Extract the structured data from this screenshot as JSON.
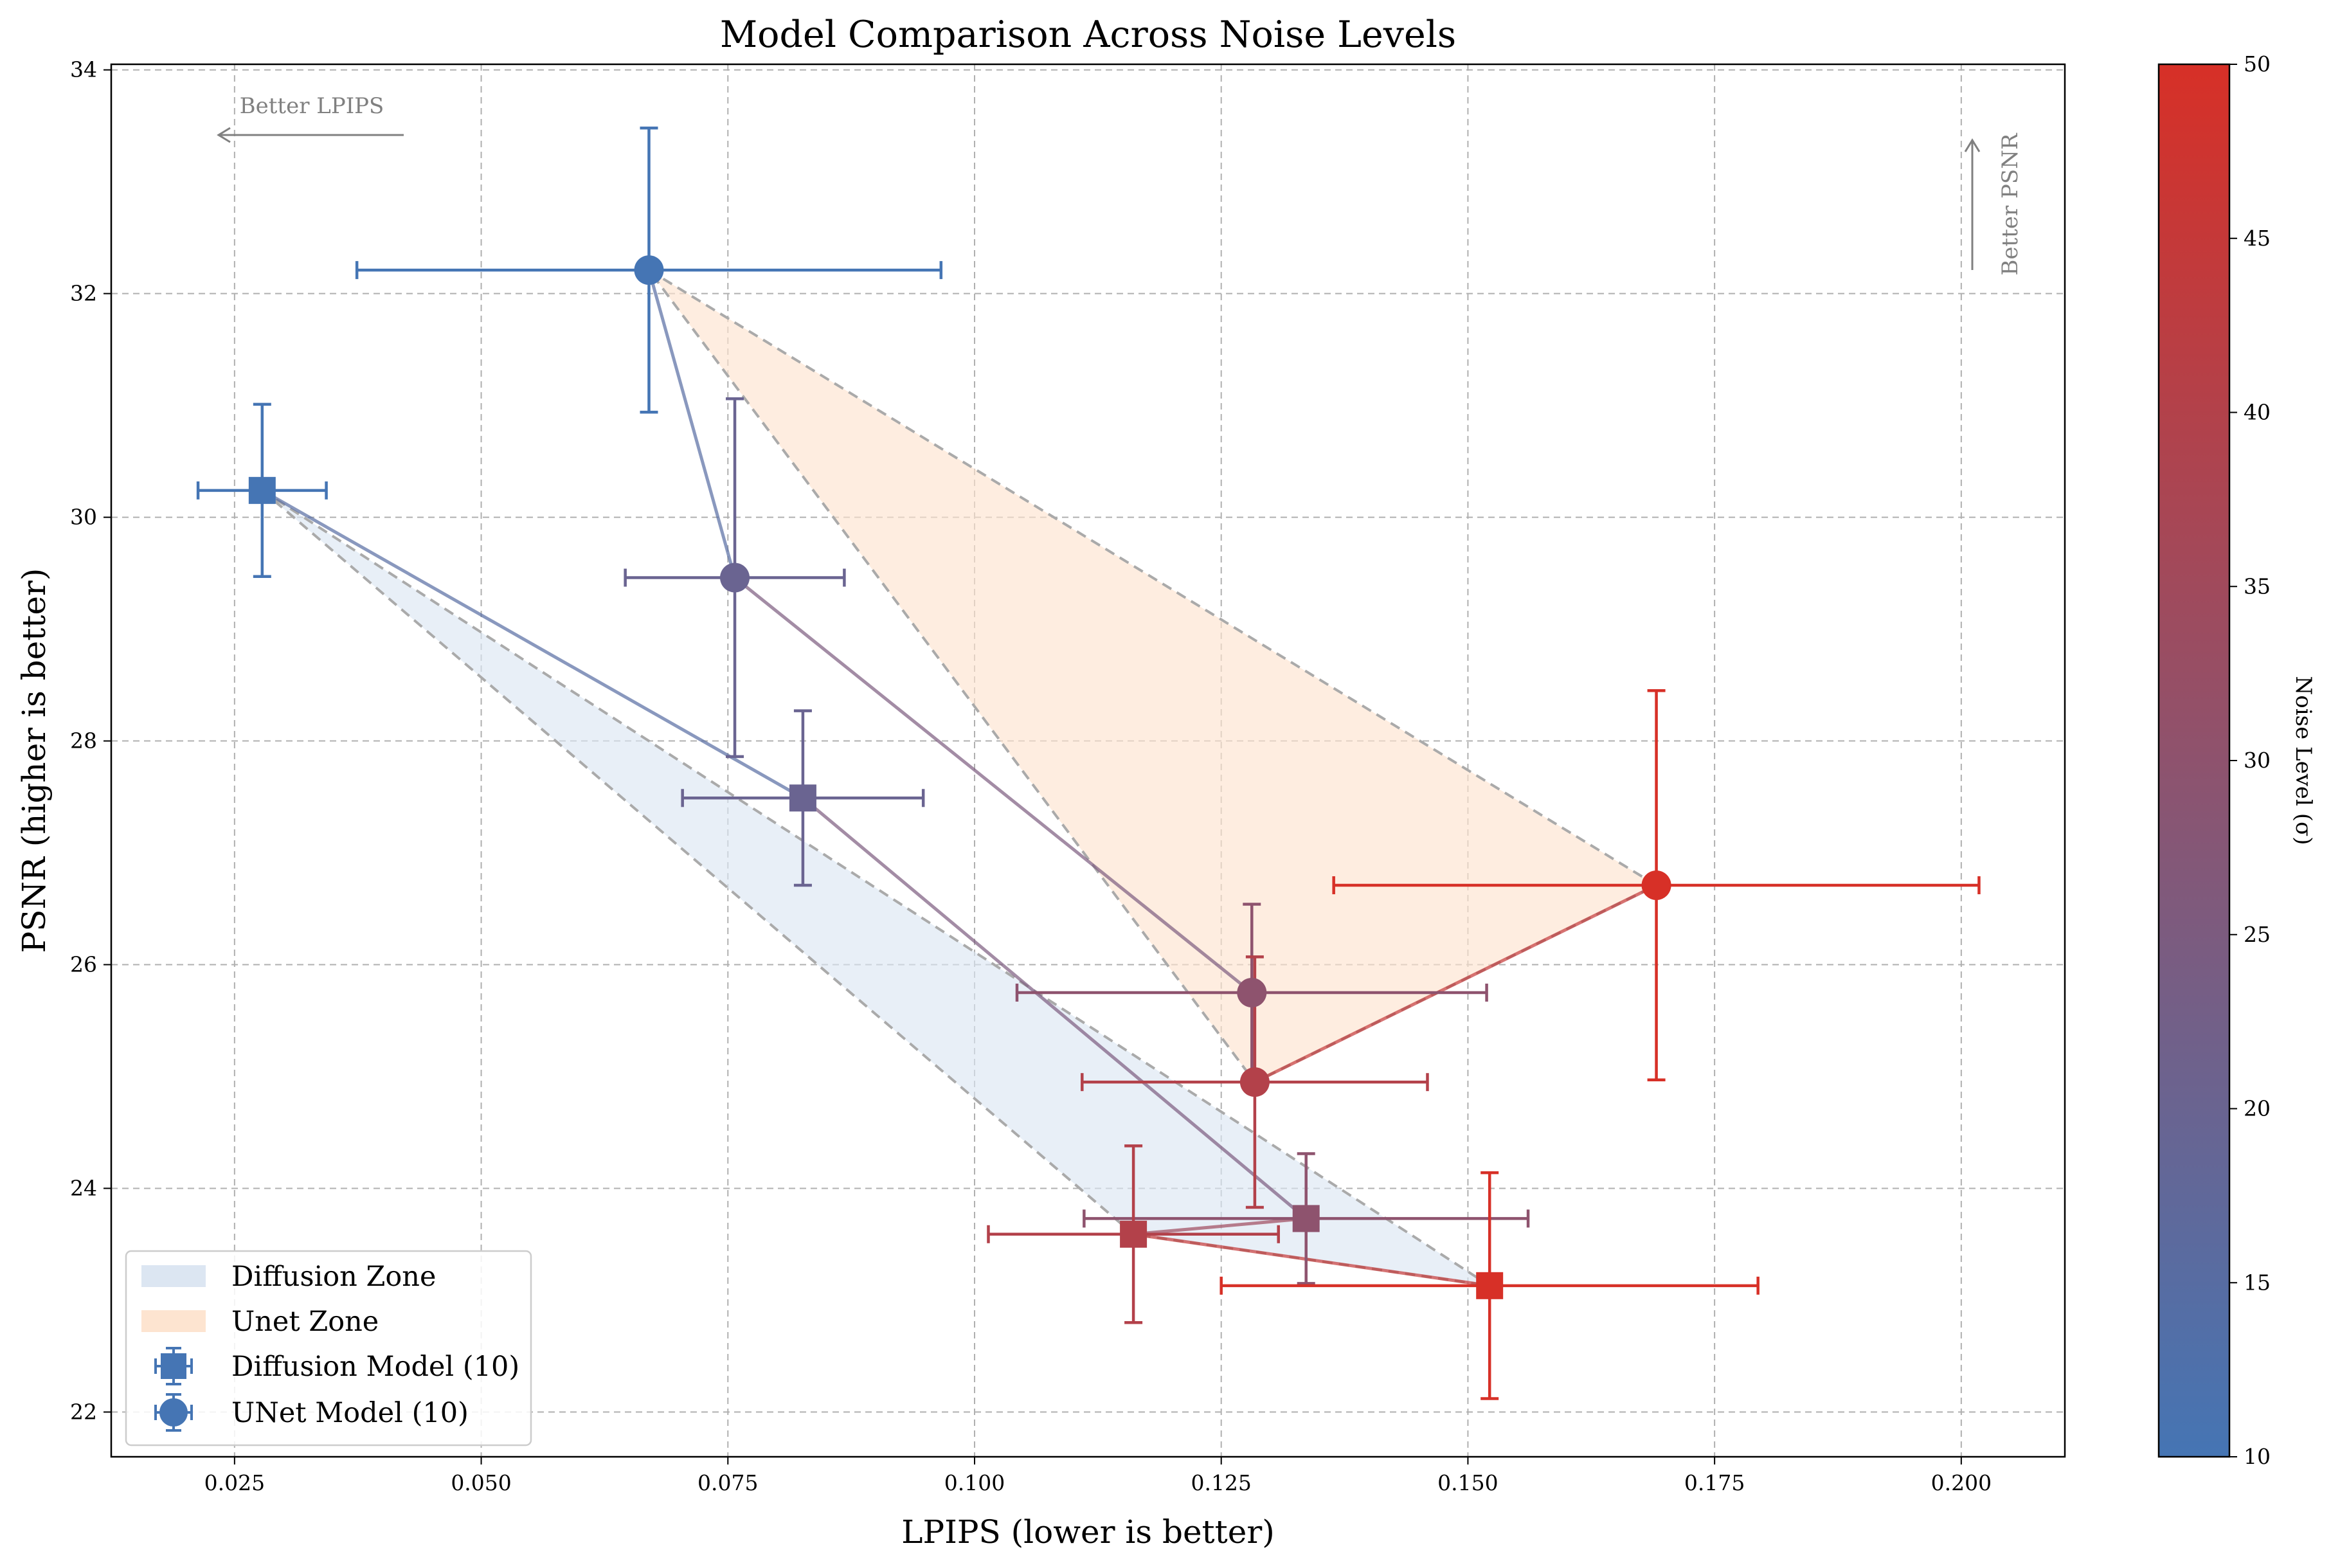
{
  "chart_data": {
    "type": "scatter",
    "title": "Model Comparison Across Noise Levels",
    "xlabel": "LPIPS (lower is better)",
    "ylabel": "PSNR (higher is better)",
    "xlim": [
      0.0125,
      0.2105
    ],
    "ylim": [
      21.6,
      34.05
    ],
    "xticks": [
      0.025,
      0.05,
      0.075,
      0.1,
      0.125,
      0.15,
      0.175,
      0.2
    ],
    "xtick_labels": [
      "0.025",
      "0.050",
      "0.075",
      "0.100",
      "0.125",
      "0.150",
      "0.175",
      "0.200"
    ],
    "yticks": [
      22,
      24,
      26,
      28,
      30,
      32,
      34
    ],
    "ytick_labels": [
      "22",
      "24",
      "26",
      "28",
      "30",
      "32",
      "34"
    ],
    "grid": true,
    "legend_position": "lower-left",
    "annotations": {
      "lpips": "Better LPIPS",
      "psnr": "Better PSNR"
    },
    "colorbar": {
      "label": "Noise Level (σ)",
      "min": 10,
      "max": 50,
      "ticks": [
        10,
        15,
        20,
        25,
        30,
        35,
        40,
        45,
        50
      ],
      "tick_labels": [
        "10",
        "15",
        "20",
        "25",
        "30",
        "35",
        "40",
        "45",
        "50"
      ],
      "color_low": "#4575b4",
      "color_high": "#d73027"
    },
    "zones": [
      {
        "name": "Diffusion Zone",
        "color": "#dce6f2"
      },
      {
        "name": "Unet Zone",
        "color": "#fde4d0"
      }
    ],
    "series": [
      {
        "name": "Diffusion Model (10)",
        "marker": "square",
        "points": [
          {
            "noise": 10,
            "x": 0.0278,
            "y": 30.24,
            "xerr": 0.0065,
            "yerr": 0.77
          },
          {
            "noise": 20,
            "x": 0.0826,
            "y": 27.49,
            "xerr": 0.0122,
            "yerr": 0.78
          },
          {
            "noise": 30,
            "x": 0.1336,
            "y": 23.73,
            "xerr": 0.0225,
            "yerr": 0.58
          },
          {
            "noise": 40,
            "x": 0.1161,
            "y": 23.59,
            "xerr": 0.0147,
            "yerr": 0.79
          },
          {
            "noise": 50,
            "x": 0.1522,
            "y": 23.13,
            "xerr": 0.0272,
            "yerr": 1.01
          }
        ]
      },
      {
        "name": "UNet Model (10)",
        "marker": "circle",
        "points": [
          {
            "noise": 10,
            "x": 0.067,
            "y": 32.21,
            "xerr": 0.0296,
            "yerr": 1.27
          },
          {
            "noise": 20,
            "x": 0.0757,
            "y": 29.46,
            "xerr": 0.0111,
            "yerr": 1.6
          },
          {
            "noise": 30,
            "x": 0.1281,
            "y": 25.75,
            "xerr": 0.0238,
            "yerr": 0.79
          },
          {
            "noise": 40,
            "x": 0.1284,
            "y": 24.95,
            "xerr": 0.0175,
            "yerr": 1.12
          },
          {
            "noise": 50,
            "x": 0.1691,
            "y": 26.71,
            "xerr": 0.0327,
            "yerr": 1.74
          }
        ]
      }
    ]
  }
}
